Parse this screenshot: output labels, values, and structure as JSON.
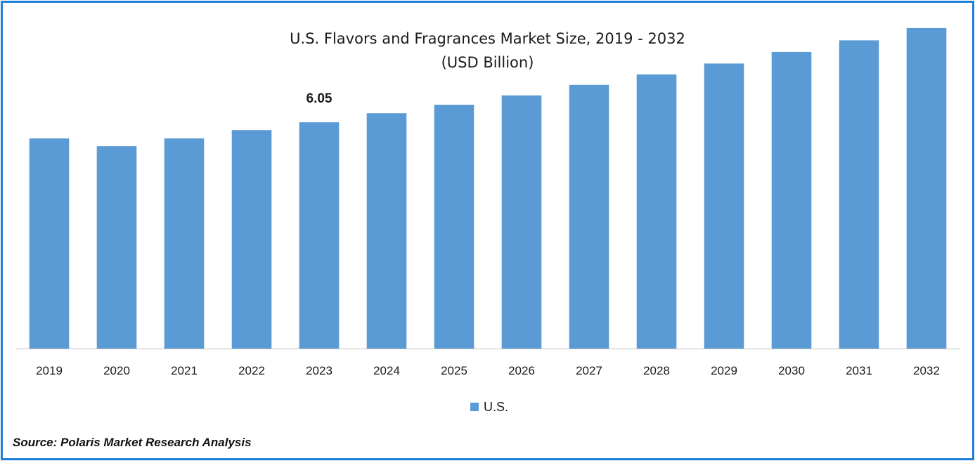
{
  "chart_data": {
    "type": "bar",
    "title": "U.S. Flavors and Fragrances Market  Size, 2019 - 2032",
    "subtitle": "(USD Billion)",
    "categories": [
      "2019",
      "2020",
      "2021",
      "2022",
      "2023",
      "2024",
      "2025",
      "2026",
      "2027",
      "2028",
      "2029",
      "2030",
      "2031",
      "2032"
    ],
    "series": [
      {
        "name": "U.S.",
        "color": "#5b9bd5",
        "values": [
          5.62,
          5.41,
          5.62,
          5.84,
          6.05,
          6.29,
          6.52,
          6.77,
          7.05,
          7.33,
          7.62,
          7.93,
          8.24,
          8.57
        ]
      }
    ],
    "data_labels": [
      {
        "category": "2023",
        "text": "6.05"
      }
    ],
    "ylim": [
      0,
      9
    ],
    "grid": false,
    "legend": "bottom"
  },
  "source": "Source: Polaris Market Research Analysis",
  "colors": {
    "frame": "#1f7fd8",
    "bar": "#5b9bd5",
    "axis": "#bfbfbf"
  }
}
